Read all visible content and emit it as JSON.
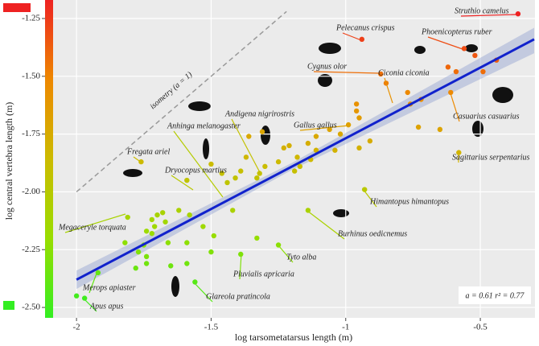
{
  "chart_data": {
    "type": "scatter",
    "x_label": "log tarsometatarsus length (m)",
    "y_label": "log central vertebra length (m)",
    "xlim": [
      -2.087,
      -0.297
    ],
    "ylim": [
      -2.545,
      -1.17
    ],
    "xticks": [
      -2.0,
      -1.5,
      -1.0,
      -0.5
    ],
    "yticks": [
      {
        "value": -1.25,
        "label": "-1.25"
      },
      {
        "value": -1.5,
        "label": "-1.50"
      },
      {
        "value": -1.75,
        "label": "-1.75"
      },
      {
        "value": -2.0,
        "label": "-2.00"
      },
      {
        "value": -2.25,
        "label": "-2.25"
      },
      {
        "value": -2.5,
        "label": "-2.50"
      }
    ],
    "grid": true,
    "colorscale": [
      "#33ee22",
      "#99dd00",
      "#ccbb00",
      "#ee8800",
      "#ee2222"
    ],
    "x": [
      -0.36,
      -0.94,
      -0.56,
      -0.52,
      -0.62,
      -0.59,
      -0.49,
      -0.87,
      -0.85,
      -0.77,
      -0.72,
      -0.61,
      -0.76,
      -0.96,
      -0.96,
      -0.95,
      -0.99,
      -0.73,
      -0.65,
      -0.91,
      -1.06,
      -1.02,
      -0.95,
      -1.04,
      -1.11,
      -1.14,
      -1.11,
      -1.13,
      -1.17,
      -1.19,
      -1.18,
      -1.21,
      -1.23,
      -1.25,
      -1.3,
      -1.32,
      -1.37,
      -1.33,
      -1.39,
      -1.41,
      -1.44,
      -1.46,
      -1.5,
      -1.36,
      -1.31,
      -1.59,
      -1.42,
      -1.49,
      -1.53,
      -1.58,
      -1.33,
      -1.62,
      -1.68,
      -1.7,
      -1.67,
      -1.72,
      -1.71,
      -1.74,
      -1.72,
      -1.75,
      -1.77,
      -1.74,
      -1.74,
      -1.78,
      -1.81,
      -1.59,
      -1.65,
      -1.56,
      -1.92,
      -2.0,
      -1.97,
      -1.82,
      -1.66,
      -1.59,
      -1.39,
      -1.25,
      -1.14,
      -0.93,
      -1.76,
      -0.58,
      -0.44,
      -1.5
    ],
    "y": [
      -1.23,
      -1.34,
      -1.38,
      -1.41,
      -1.46,
      -1.48,
      -1.48,
      -1.49,
      -1.53,
      -1.57,
      -1.6,
      -1.57,
      -1.62,
      -1.62,
      -1.65,
      -1.68,
      -1.71,
      -1.72,
      -1.73,
      -1.78,
      -1.73,
      -1.75,
      -1.81,
      -1.82,
      -1.76,
      -1.79,
      -1.82,
      -1.86,
      -1.89,
      -1.91,
      -1.85,
      -1.8,
      -1.81,
      -1.87,
      -1.89,
      -1.92,
      -1.85,
      -1.94,
      -1.91,
      -1.94,
      -1.96,
      -1.92,
      -1.88,
      -1.76,
      -1.74,
      -1.95,
      -2.08,
      -2.19,
      -2.15,
      -2.1,
      -2.2,
      -2.08,
      -2.09,
      -2.1,
      -2.13,
      -2.12,
      -2.15,
      -2.17,
      -2.18,
      -2.23,
      -2.26,
      -2.28,
      -2.31,
      -2.33,
      -2.11,
      -2.31,
      -2.32,
      -2.39,
      -2.35,
      -2.45,
      -2.46,
      -2.22,
      -2.22,
      -2.22,
      -2.27,
      -2.23,
      -2.08,
      -1.99,
      -1.87,
      -1.83,
      -1.43,
      -2.26
    ],
    "fit_line": {
      "x": [
        -2.0,
        -0.3
      ],
      "y": [
        -2.38,
        -1.34
      ],
      "color": "#1122cc"
    },
    "confidence_band": {
      "x": [
        -2.0,
        -1.2,
        -0.3
      ],
      "lower": [
        -2.42,
        -1.905,
        -1.4
      ],
      "upper": [
        -2.34,
        -1.875,
        -1.29
      ]
    },
    "isometry": {
      "label": "isometry (a = 1)",
      "x": [
        -2.0,
        -1.22
      ],
      "y": [
        -2.0,
        -1.22
      ]
    },
    "stats_text": "a = 0.61 r² = 0.77",
    "annotations": [
      "Struthio camelus",
      "Pelecanus crispus",
      "Phoenicopterus ruber",
      "Cygnus olor",
      "Ciconia ciconia",
      "Gallus gallus",
      "Casuarius casuarius",
      "Sagittarius serpentarius",
      "Andigena nigrirostris",
      "Anhinga melanogaster",
      "Fregata ariel",
      "Dryocopus martius",
      "Megaceryle torquata",
      "Himantopus himantopus",
      "Burhinus oedicnemus",
      "Tyto alba",
      "Pluvialis apricaria",
      "Merops apiaster",
      "Glareola pratincola",
      "Apus apus"
    ]
  }
}
